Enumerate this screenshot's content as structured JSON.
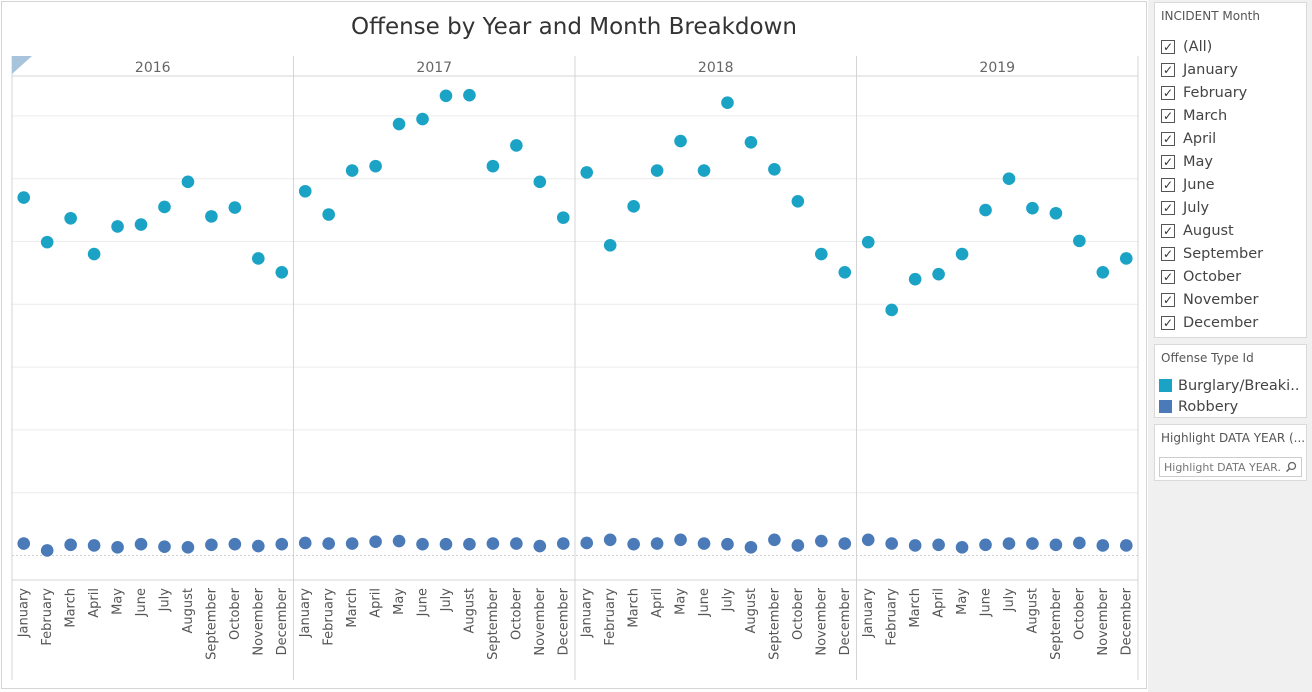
{
  "title": "Offense by Year and Month Breakdown",
  "filter": {
    "title": "INCIDENT Month",
    "items": [
      {
        "label": "(All)",
        "checked": true
      },
      {
        "label": "January",
        "checked": true
      },
      {
        "label": "February",
        "checked": true
      },
      {
        "label": "March",
        "checked": true
      },
      {
        "label": "April",
        "checked": true
      },
      {
        "label": "May",
        "checked": true
      },
      {
        "label": "June",
        "checked": true
      },
      {
        "label": "July",
        "checked": true
      },
      {
        "label": "August",
        "checked": true
      },
      {
        "label": "September",
        "checked": true
      },
      {
        "label": "October",
        "checked": true
      },
      {
        "label": "November",
        "checked": true
      },
      {
        "label": "December",
        "checked": true
      }
    ]
  },
  "legend": {
    "title": "Offense Type Id",
    "items": [
      {
        "label": "Burglary/Breaki..",
        "color": "#1ba3c6"
      },
      {
        "label": "Robbery",
        "color": "#4a7ab7"
      }
    ]
  },
  "highlight": {
    "title": "Highlight DATA YEAR (...",
    "placeholder": "Highlight DATA YEAR...",
    "icon": "search-icon"
  },
  "colors": {
    "burglary": "#1ba3c6",
    "robbery": "#4a7ab7",
    "grid": "#ececec",
    "divider": "#d4d4d4"
  },
  "chart_data": {
    "type": "scatter",
    "title": "Offense by Year and Month Breakdown",
    "xlabel": "",
    "ylabel": "",
    "ylim": [
      -0.3,
      7.5
    ],
    "gridlines": [
      0,
      1,
      2,
      3,
      4,
      5,
      6,
      7
    ],
    "grid": true,
    "years": [
      "2016",
      "2017",
      "2018",
      "2019"
    ],
    "months": [
      "January",
      "February",
      "March",
      "April",
      "May",
      "June",
      "July",
      "August",
      "September",
      "October",
      "November",
      "December"
    ],
    "series": [
      {
        "name": "Burglary/Breaki..",
        "color": "#1ba3c6",
        "values": [
          [
            5.7,
            4.99,
            5.37,
            4.8,
            5.24,
            5.27,
            5.55,
            5.95,
            5.4,
            5.54,
            4.73,
            4.51
          ],
          [
            5.8,
            5.43,
            6.13,
            6.2,
            6.87,
            6.95,
            7.32,
            7.33,
            6.2,
            6.53,
            5.95,
            5.38
          ],
          [
            6.1,
            4.94,
            5.56,
            6.13,
            6.6,
            6.13,
            7.21,
            6.58,
            6.15,
            5.64,
            4.8,
            4.51
          ],
          [
            4.99,
            3.91,
            4.4,
            4.48,
            4.8,
            5.5,
            6.0,
            5.53,
            5.45,
            5.01,
            4.51,
            4.73
          ]
        ]
      },
      {
        "name": "Robbery",
        "color": "#4a7ab7",
        "values": [
          [
            0.19,
            0.08,
            0.17,
            0.16,
            0.13,
            0.18,
            0.14,
            0.13,
            0.17,
            0.18,
            0.15,
            0.18
          ],
          [
            0.2,
            0.19,
            0.19,
            0.22,
            0.23,
            0.18,
            0.18,
            0.18,
            0.19,
            0.19,
            0.15,
            0.19
          ],
          [
            0.2,
            0.25,
            0.18,
            0.19,
            0.25,
            0.19,
            0.18,
            0.13,
            0.25,
            0.16,
            0.23,
            0.19
          ],
          [
            0.25,
            0.19,
            0.16,
            0.17,
            0.13,
            0.17,
            0.19,
            0.19,
            0.17,
            0.2,
            0.16,
            0.16
          ]
        ]
      }
    ]
  }
}
